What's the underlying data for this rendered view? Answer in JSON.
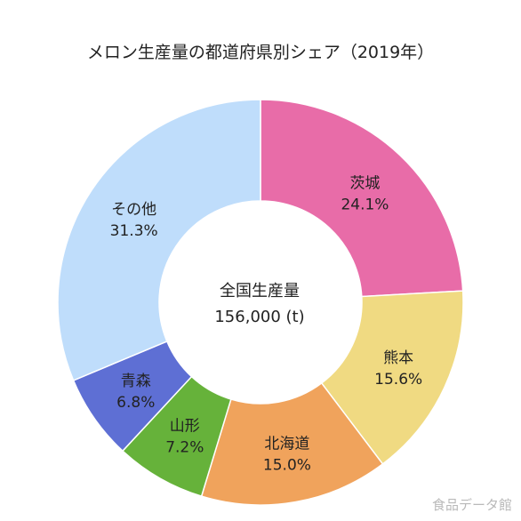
{
  "chart_data": {
    "type": "pie",
    "title": "メロン生産量の都道府県別シェア（2019年）",
    "center_label": "全国生産量",
    "center_value": "156,000 (t)",
    "categories": [
      "茨城",
      "熊本",
      "北海道",
      "山形",
      "青森",
      "その他"
    ],
    "values": [
      24.1,
      15.6,
      15.0,
      7.2,
      6.8,
      31.3
    ],
    "value_labels": [
      "24.1%",
      "15.6%",
      "15.0%",
      "7.2%",
      "6.8%",
      "31.3%"
    ],
    "colors": [
      "#E86CA8",
      "#F0DA82",
      "#F0A35C",
      "#66B23A",
      "#5E6FD4",
      "#BFDDFB"
    ],
    "legend": "none"
  },
  "watermark": "食品データ館"
}
